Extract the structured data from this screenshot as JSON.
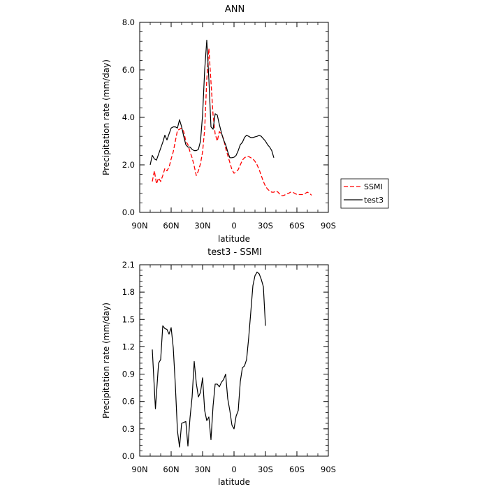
{
  "chart_data": [
    {
      "type": "line",
      "title": "ANN",
      "xlabel": "latitude",
      "ylabel": "Precipitation rate (mm/day)",
      "xlim": [
        90,
        -90
      ],
      "ylim": [
        0,
        8
      ],
      "x_ticks": [
        90,
        60,
        30,
        0,
        -30,
        -60,
        -90
      ],
      "x_tick_labels": [
        "90N",
        "60N",
        "30N",
        "0",
        "30S",
        "60S",
        "90S"
      ],
      "y_ticks": [
        0,
        2,
        4,
        6,
        8
      ],
      "y_tick_labels": [
        "0.0",
        "2.0",
        "4.0",
        "6.0",
        "8.0"
      ],
      "legend_position": "right",
      "series": [
        {
          "name": "SSMI",
          "color": "#ff0000",
          "dash": "dashed",
          "x": [
            78,
            76,
            74,
            72,
            70,
            68,
            66,
            64,
            62,
            60,
            58,
            56,
            54,
            52,
            50,
            48,
            46,
            44,
            42,
            40,
            38,
            36,
            34,
            32,
            30,
            28,
            26,
            24,
            22,
            20,
            18,
            16,
            14,
            12,
            10,
            8,
            6,
            4,
            2,
            0,
            -2,
            -4,
            -6,
            -8,
            -10,
            -12,
            -14,
            -16,
            -18,
            -20,
            -22,
            -24,
            -26,
            -28,
            -30,
            -32,
            -34,
            -36,
            -38,
            -40,
            -42,
            -44,
            -46,
            -48,
            -50,
            -52,
            -54,
            -56,
            -58,
            -60,
            -62,
            -64,
            -66,
            -68,
            -70,
            -72,
            -74
          ],
          "y": [
            1.3,
            1.75,
            1.2,
            1.45,
            1.3,
            1.55,
            1.85,
            1.75,
            1.9,
            2.25,
            2.55,
            3.0,
            3.45,
            3.5,
            3.55,
            3.4,
            3.0,
            2.85,
            2.55,
            2.3,
            1.95,
            1.55,
            1.75,
            2.05,
            2.55,
            3.5,
            5.6,
            6.9,
            5.5,
            4.1,
            3.3,
            3.0,
            3.4,
            3.3,
            3.1,
            2.7,
            2.4,
            2.1,
            1.8,
            1.65,
            1.7,
            1.8,
            2.0,
            2.2,
            2.3,
            2.35,
            2.35,
            2.3,
            2.25,
            2.15,
            2.0,
            1.8,
            1.55,
            1.3,
            1.1,
            0.98,
            0.9,
            0.85,
            0.85,
            0.9,
            0.85,
            0.75,
            0.7,
            0.72,
            0.78,
            0.8,
            0.85,
            0.85,
            0.8,
            0.75,
            0.75,
            0.75,
            0.75,
            0.8,
            0.85,
            0.8,
            0.72
          ]
        },
        {
          "name": "test3",
          "color": "#000000",
          "dash": "solid",
          "x": [
            80,
            78,
            76,
            74,
            72,
            70,
            68,
            66,
            64,
            62,
            60,
            58,
            56,
            54,
            52,
            50,
            48,
            46,
            44,
            42,
            40,
            38,
            36,
            34,
            32,
            30,
            28,
            26,
            24,
            22,
            20,
            18,
            16,
            14,
            12,
            10,
            8,
            6,
            4,
            2,
            0,
            -2,
            -4,
            -6,
            -8,
            -10,
            -12,
            -14,
            -16,
            -18,
            -20,
            -22,
            -24,
            -26,
            -28,
            -30,
            -32,
            -34,
            -36,
            -38,
            -40,
            -42,
            -44,
            -46,
            -48,
            -50,
            -52,
            -54,
            -56,
            -58,
            -60,
            -62,
            -64
          ],
          "y": [
            2.0,
            2.4,
            2.25,
            2.2,
            2.45,
            2.7,
            2.95,
            3.25,
            3.05,
            3.3,
            3.55,
            3.6,
            3.6,
            3.55,
            3.9,
            3.6,
            3.2,
            2.85,
            2.75,
            2.75,
            2.65,
            2.6,
            2.6,
            2.65,
            3.0,
            4.1,
            6.0,
            7.25,
            5.6,
            3.6,
            3.5,
            4.15,
            4.1,
            3.7,
            3.35,
            3.05,
            2.85,
            2.55,
            2.3,
            2.3,
            2.32,
            2.4,
            2.6,
            2.85,
            2.95,
            3.15,
            3.25,
            3.2,
            3.15,
            3.15,
            3.18,
            3.2,
            3.25,
            3.2,
            3.1,
            3.0,
            2.85,
            2.75,
            2.6,
            2.3,
            2.3,
            2.3,
            2.3,
            2.3,
            2.3,
            2.3,
            2.3,
            2.3,
            2.3,
            2.3,
            2.3,
            2.3,
            2.3
          ]
        }
      ]
    },
    {
      "type": "line",
      "title": "test3 - SSMI",
      "xlabel": "latitude",
      "ylabel": "Precipitation rate (mm/day)",
      "xlim": [
        90,
        -90
      ],
      "ylim": [
        0,
        2.1
      ],
      "x_ticks": [
        90,
        60,
        30,
        0,
        -30,
        -60,
        -90
      ],
      "x_tick_labels": [
        "90N",
        "60N",
        "30N",
        "0",
        "30S",
        "60S",
        "90S"
      ],
      "y_ticks": [
        0,
        0.3,
        0.6,
        0.9,
        1.2,
        1.5,
        1.8,
        2.1
      ],
      "y_tick_labels": [
        "0.0",
        "0.3",
        "0.6",
        "0.9",
        "1.2",
        "1.5",
        "1.8",
        "2.1"
      ],
      "series": [
        {
          "name": "",
          "color": "#000000",
          "dash": "solid",
          "x": [
            78,
            75,
            72,
            70,
            68,
            66,
            64,
            62,
            60,
            58,
            56,
            54,
            52,
            50,
            48,
            46,
            44,
            42,
            40,
            38,
            36,
            34,
            32,
            30,
            28,
            26,
            24,
            22,
            20,
            18,
            16,
            14,
            12,
            10,
            8,
            6,
            4,
            2,
            0,
            -2,
            -4,
            -6,
            -8,
            -10,
            -12,
            -14,
            -16,
            -18,
            -20,
            -22,
            -24,
            -26,
            -28,
            -30,
            -32,
            -34,
            -36,
            -38,
            -40,
            -42,
            -44,
            -46,
            -48,
            -50,
            -52,
            -54,
            -56,
            -58,
            -60,
            -62,
            -64
          ],
          "y": [
            1.17,
            0.52,
            1.02,
            1.06,
            1.43,
            1.4,
            1.39,
            1.34,
            1.41,
            1.19,
            0.78,
            0.28,
            0.1,
            0.36,
            0.37,
            0.38,
            0.11,
            0.42,
            0.65,
            1.04,
            0.8,
            0.65,
            0.7,
            0.86,
            0.5,
            0.39,
            0.43,
            0.18,
            0.55,
            0.79,
            0.79,
            0.76,
            0.81,
            0.84,
            0.9,
            0.63,
            0.5,
            0.34,
            0.3,
            0.44,
            0.5,
            0.82,
            0.97,
            0.99,
            1.06,
            1.3,
            1.58,
            1.87,
            1.98,
            2.02,
            2.0,
            1.94,
            1.86,
            1.43,
            1.43,
            1.43,
            1.43,
            1.43,
            1.43,
            1.43,
            1.43,
            1.43,
            1.43,
            1.43,
            1.43,
            1.43,
            1.43,
            1.43,
            1.43,
            1.43,
            1.43
          ]
        }
      ]
    }
  ]
}
